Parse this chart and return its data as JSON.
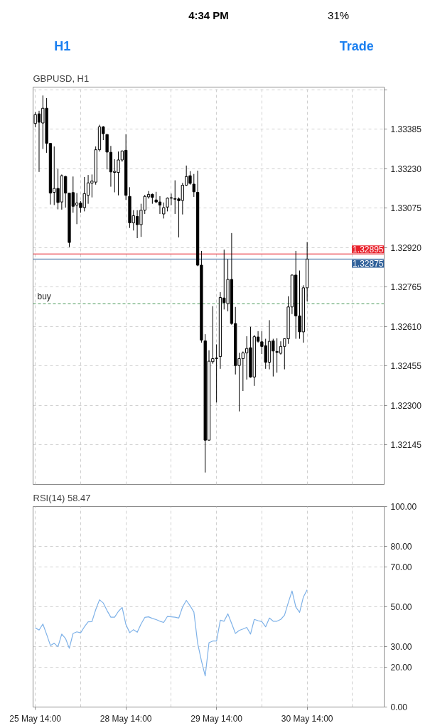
{
  "chart_data": [
    {
      "type": "other",
      "annotations": [
        "4:34 PM",
        "31%",
        "H1",
        "Trade"
      ]
    },
    {
      "type": "candlestick",
      "title": "GBPUSD, H1",
      "color": "#000000",
      "grid": true,
      "categories": [
        null,
        null,
        null,
        null,
        null,
        null,
        null,
        null,
        null,
        null,
        null,
        null,
        null,
        null,
        null,
        null,
        null,
        null,
        null,
        null,
        null,
        null,
        null,
        null,
        null,
        null,
        null,
        null,
        null,
        null,
        null,
        null,
        null,
        null,
        null,
        null,
        null,
        null,
        null,
        null,
        null,
        null,
        null,
        null,
        null,
        null,
        null,
        null,
        null,
        null,
        null,
        null,
        null,
        null,
        null,
        null,
        null,
        null,
        null,
        null,
        null,
        null,
        null,
        null,
        null,
        null,
        null,
        null,
        null,
        null,
        null,
        null,
        null,
        null,
        null,
        null,
        null,
        null,
        null,
        null,
        null,
        null,
        null,
        null,
        null,
        null,
        null,
        null,
        null,
        null,
        null,
        null,
        null
      ],
      "ohlc": [
        [
          1.33407,
          1.33452,
          1.33392,
          1.33442
        ],
        [
          1.33445,
          1.33457,
          1.33217,
          1.33412
        ],
        [
          1.33409,
          1.33517,
          1.33307,
          1.33467
        ],
        [
          1.33467,
          1.33507,
          1.33292,
          1.33329
        ],
        [
          1.33329,
          1.33329,
          1.33089,
          1.33134
        ],
        [
          1.33137,
          1.33317,
          1.33087,
          1.33152
        ],
        [
          1.33152,
          1.33229,
          1.3307,
          1.33097
        ],
        [
          1.33099,
          1.33207,
          1.33069,
          1.33202
        ],
        [
          1.33199,
          1.33202,
          1.33077,
          1.33134
        ],
        [
          1.33134,
          1.33134,
          1.32922,
          1.3294
        ],
        [
          1.33136,
          1.33199,
          1.33057,
          1.33082
        ],
        [
          1.33087,
          1.33134,
          1.33012,
          1.33095
        ],
        [
          1.33095,
          1.33102,
          1.33057,
          1.33077
        ],
        [
          1.33077,
          1.33197,
          1.33062,
          1.33132
        ],
        [
          1.33125,
          1.33205,
          1.33092,
          1.33174
        ],
        [
          1.33173,
          1.33207,
          1.33117,
          1.33181
        ],
        [
          1.33177,
          1.33317,
          1.33167,
          1.33304
        ],
        [
          1.33304,
          1.33402,
          1.33297,
          1.33394
        ],
        [
          1.33394,
          1.33397,
          1.33342,
          1.33367
        ],
        [
          1.33364,
          1.33364,
          1.33227,
          1.33295
        ],
        [
          1.33294,
          1.33319,
          1.33159,
          1.33217
        ],
        [
          1.33215,
          1.33267,
          1.33137,
          1.33219
        ],
        [
          1.33215,
          1.33297,
          1.33125,
          1.33264
        ],
        [
          1.33264,
          1.33302,
          1.33257,
          1.33299
        ],
        [
          1.33302,
          1.33365,
          1.33107,
          1.33125
        ],
        [
          1.33121,
          1.33157,
          1.32997,
          1.33017
        ],
        [
          1.33017,
          1.33067,
          1.32987,
          1.33045
        ],
        [
          1.33042,
          1.33067,
          1.32957,
          1.3301
        ],
        [
          1.3301,
          1.33092,
          1.32962,
          1.33067
        ],
        [
          1.33067,
          1.33127,
          1.33052,
          1.33121
        ],
        [
          1.33119,
          1.33142,
          1.33112,
          1.33129
        ],
        [
          1.33129,
          1.33132,
          1.33092,
          1.33117
        ],
        [
          1.33107,
          1.33139,
          1.33095,
          1.33099
        ],
        [
          1.33099,
          1.33122,
          1.33052,
          1.33087
        ],
        [
          1.33052,
          1.33097,
          1.33034,
          1.33077
        ],
        [
          1.33079,
          1.33117,
          1.33062,
          1.33114
        ],
        [
          1.33114,
          1.33132,
          1.33087,
          1.33116
        ],
        [
          1.33112,
          1.33184,
          1.33052,
          1.3311
        ],
        [
          1.33111,
          1.33117,
          1.3296,
          1.33104
        ],
        [
          1.33105,
          1.33174,
          1.3305,
          1.33165
        ],
        [
          1.33165,
          1.33242,
          1.33162,
          1.33199
        ],
        [
          1.33202,
          1.3322,
          1.33167,
          1.33172
        ],
        [
          1.33169,
          1.33209,
          1.33119,
          1.33139
        ],
        [
          1.33137,
          1.33222,
          1.32847,
          1.32851
        ],
        [
          1.32851,
          1.32907,
          1.32547,
          1.32557
        ],
        [
          1.32554,
          1.3258,
          1.32037,
          1.32164
        ],
        [
          1.32164,
          1.32517,
          1.32162,
          1.32474
        ],
        [
          1.32472,
          1.3269,
          1.32464,
          1.32484
        ],
        [
          1.32484,
          1.3254,
          1.32312,
          1.32487
        ],
        [
          1.32492,
          1.32745,
          1.32444,
          1.32724
        ],
        [
          1.32722,
          1.32912,
          1.32677,
          1.32704
        ],
        [
          1.327,
          1.32874,
          1.3267,
          1.32795
        ],
        [
          1.32795,
          1.32977,
          1.32617,
          1.32622
        ],
        [
          1.32622,
          1.32687,
          1.32422,
          1.32457
        ],
        [
          1.32457,
          1.32507,
          1.32277,
          1.32484
        ],
        [
          1.32484,
          1.32512,
          1.32357,
          1.32507
        ],
        [
          1.32507,
          1.32572,
          1.32402,
          1.32524
        ],
        [
          1.32527,
          1.32609,
          1.32409,
          1.32412
        ],
        [
          1.32412,
          1.32577,
          1.32377,
          1.3257
        ],
        [
          1.32569,
          1.32592,
          1.32547,
          1.32552
        ],
        [
          1.3255,
          1.32592,
          1.32502,
          1.32532
        ],
        [
          1.32535,
          1.32562,
          1.32444,
          1.3247
        ],
        [
          1.3247,
          1.32635,
          1.32442,
          1.32552
        ],
        [
          1.32554,
          1.32562,
          1.32414,
          1.32514
        ],
        [
          1.32509,
          1.32564,
          1.32429,
          1.32512
        ],
        [
          1.32505,
          1.32552,
          1.325,
          1.32532
        ],
        [
          1.32532,
          1.32564,
          1.32442,
          1.32562
        ],
        [
          1.32562,
          1.32729,
          1.32542,
          1.32687
        ],
        [
          1.32687,
          1.32815,
          1.32659,
          1.32812
        ],
        [
          1.32812,
          1.32907,
          1.32562,
          1.32652
        ],
        [
          1.32652,
          1.3283,
          1.32562,
          1.32589
        ],
        [
          1.32589,
          1.32772,
          1.32547,
          1.32762
        ],
        [
          1.32762,
          1.32942,
          1.32709,
          1.32875
        ],
        null,
        null,
        null,
        null,
        null,
        null,
        null,
        null,
        null,
        null,
        null,
        null,
        null,
        null,
        null,
        null,
        null,
        null,
        null,
        null
      ],
      "ylim": [
        1.3199,
        1.3355
      ],
      "yticks": [
        {
          "value": 1.32145,
          "label": "1.32145"
        },
        {
          "value": 1.323,
          "label": "1.32300"
        },
        {
          "value": 1.32455,
          "label": "1.32455"
        },
        {
          "value": 1.3261,
          "label": "1.32610"
        },
        {
          "value": 1.32765,
          "label": "1.32765"
        },
        {
          "value": 1.3292,
          "label": "1.32920"
        },
        {
          "value": 1.33075,
          "label": "1.33075"
        },
        {
          "value": 1.3323,
          "label": "1.33230"
        },
        {
          "value": 1.33385,
          "label": "1.33385"
        },
        {
          "value": 1.3354,
          "label": null
        }
      ],
      "ref_lines": [
        {
          "axis": "y",
          "value": 1.32895,
          "label": "1.32895",
          "color": "#e8212b"
        },
        {
          "axis": "y",
          "value": 1.32875,
          "label": "1.32875",
          "color": "#2f6099"
        },
        {
          "axis": "y",
          "value": 1.327,
          "label": "buy",
          "color": "#4a9a5a",
          "line_style": "dashed"
        }
      ]
    },
    {
      "type": "line",
      "title": "RSI(14) 58.47",
      "color": "#7fb2e8",
      "grid": true,
      "categories": [
        "25 May 14:00",
        null,
        null,
        null,
        null,
        null,
        null,
        null,
        null,
        null,
        null,
        null,
        null,
        null,
        null,
        null,
        null,
        null,
        null,
        null,
        null,
        null,
        null,
        null,
        "28 May 14:00",
        null,
        null,
        null,
        null,
        null,
        null,
        null,
        null,
        null,
        null,
        null,
        null,
        null,
        null,
        null,
        null,
        null,
        null,
        null,
        null,
        null,
        null,
        null,
        "29 May 14:00",
        null,
        null,
        null,
        null,
        null,
        null,
        null,
        null,
        null,
        null,
        null,
        null,
        null,
        null,
        null,
        null,
        null,
        null,
        null,
        null,
        null,
        null,
        null,
        "30 May 14:00",
        null,
        null,
        null,
        null,
        null,
        null,
        null,
        null,
        null,
        null,
        null,
        null,
        null,
        null,
        null,
        null,
        null,
        null,
        null,
        null
      ],
      "values": [
        39.5,
        38.4,
        41.4,
        36.2,
        30.7,
        31.8,
        30.1,
        36.4,
        34.2,
        29.3,
        36.7,
        37.5,
        37.0,
        40.0,
        42.5,
        42.6,
        48.6,
        53.5,
        51.9,
        48.1,
        44.8,
        44.8,
        47.7,
        49.7,
        41.1,
        37.1,
        38.6,
        37.3,
        41.4,
        44.7,
        45.0,
        44.2,
        43.6,
        42.8,
        42.2,
        45.2,
        45.0,
        44.8,
        44.4,
        49.9,
        53.2,
        50.5,
        47.4,
        31.8,
        23.0,
        15.5,
        32.1,
        32.9,
        32.9,
        43.3,
        42.8,
        46.5,
        41.7,
        36.7,
        38.2,
        38.9,
        39.7,
        36.4,
        43.7,
        43.1,
        42.6,
        40.0,
        44.4,
        42.8,
        42.8,
        43.7,
        45.8,
        52.1,
        57.9,
        49.9,
        47.2,
        54.9,
        58.47,
        null,
        null,
        null,
        null,
        null,
        null,
        null,
        null,
        null,
        null,
        null,
        null,
        null,
        null,
        null,
        null,
        null,
        null,
        null,
        null
      ],
      "ylim": [
        0,
        100
      ],
      "yticks": [
        {
          "value": 0,
          "label": "0.00"
        },
        {
          "value": 20,
          "label": "20.00"
        },
        {
          "value": 30,
          "label": "30.00"
        },
        {
          "value": 50,
          "label": "50.00"
        },
        {
          "value": 70,
          "label": "70.00"
        },
        {
          "value": 80,
          "label": "80.00"
        },
        {
          "value": 100,
          "label": "100.00"
        }
      ]
    }
  ]
}
